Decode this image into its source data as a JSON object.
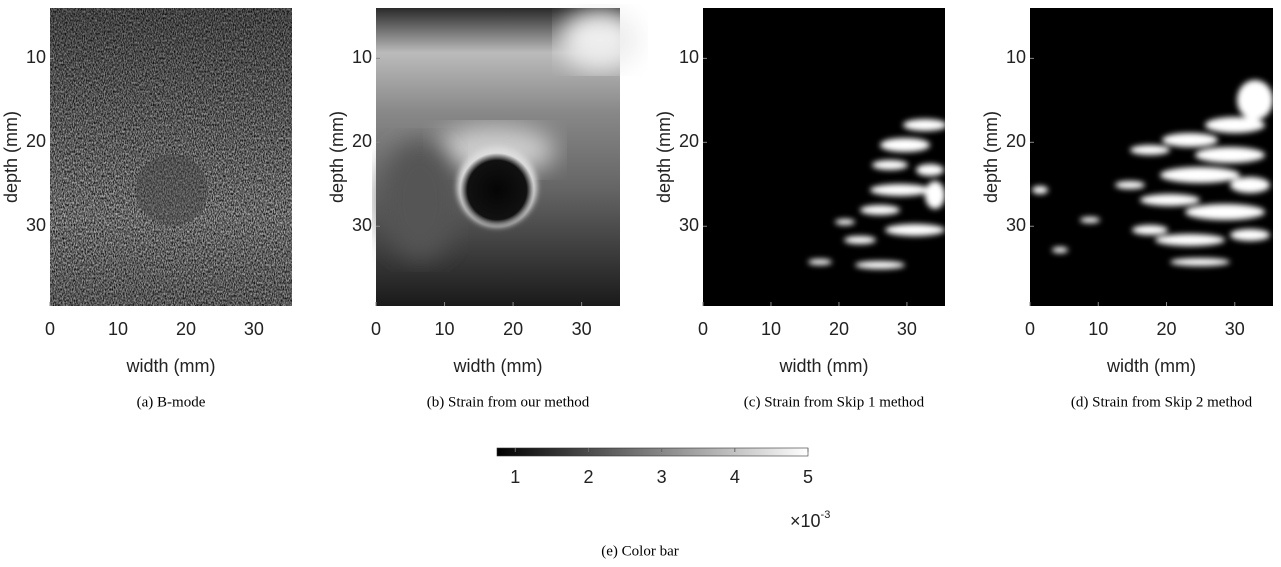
{
  "figure": {
    "panels": [
      {
        "caption": "(a) B-mode",
        "xlabel": "width (mm)",
        "ylabel": "depth (mm)",
        "xlim": [
          0,
          35.6
        ],
        "ylim": [
          4,
          39.5
        ],
        "xticks": [
          0,
          10,
          20,
          30
        ],
        "yticks": [
          10,
          20,
          30
        ]
      },
      {
        "caption": "(b) Strain from our method",
        "xlabel": "width (mm)",
        "ylabel": "depth (mm)",
        "xlim": [
          0,
          35.6
        ],
        "ylim": [
          4,
          39.5
        ],
        "xticks": [
          0,
          10,
          20,
          30
        ],
        "yticks": [
          10,
          20,
          30
        ]
      },
      {
        "caption": "(c) Strain from Skip 1 method",
        "xlabel": "width (mm)",
        "ylabel": "depth (mm)",
        "xlim": [
          0,
          35.6
        ],
        "ylim": [
          4,
          39.5
        ],
        "xticks": [
          0,
          10,
          20,
          30
        ],
        "yticks": [
          10,
          20,
          30
        ]
      },
      {
        "caption": "(d) Strain from Skip 2 method",
        "xlabel": "width (mm)",
        "ylabel": "depth (mm)",
        "xlim": [
          0,
          35.6
        ],
        "ylim": [
          4,
          39.5
        ],
        "xticks": [
          0,
          10,
          20,
          30
        ],
        "yticks": [
          10,
          20,
          30
        ]
      }
    ],
    "colorbar": {
      "caption": "(e) Color bar",
      "clim": [
        0.75,
        5
      ],
      "ticks": [
        1,
        2,
        3,
        4,
        5
      ],
      "multiplier": "×10",
      "exponent": "-3"
    }
  }
}
